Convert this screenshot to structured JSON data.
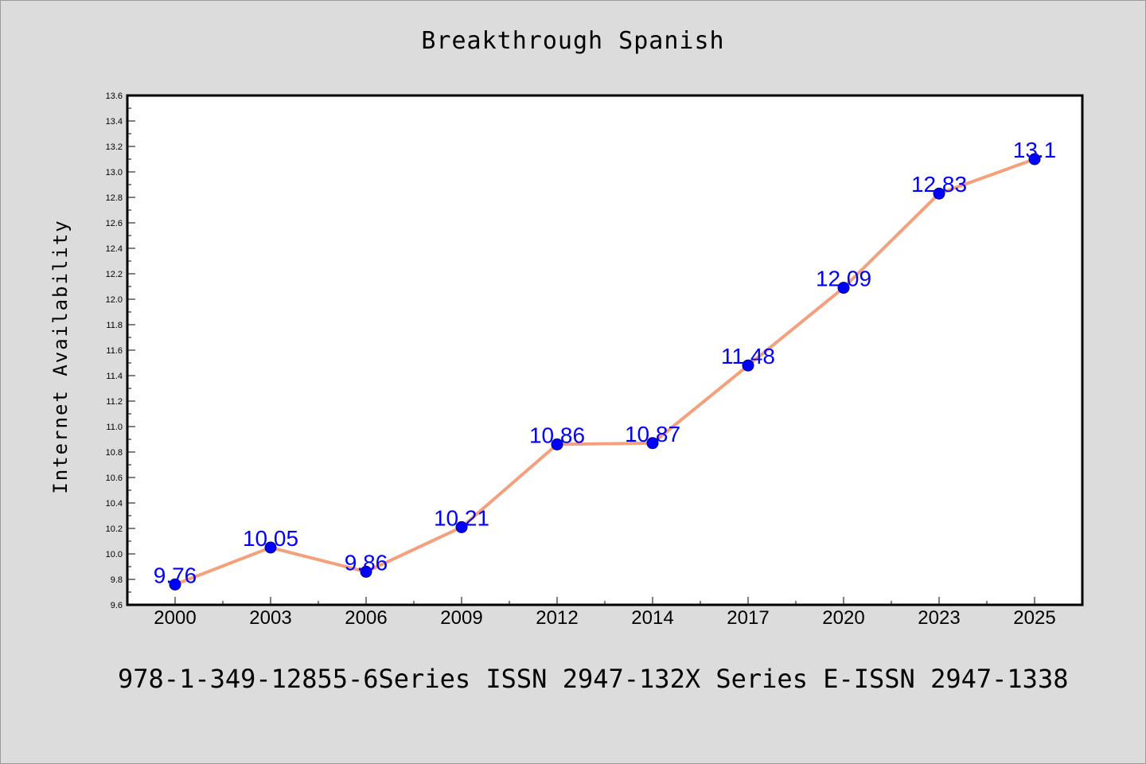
{
  "chart_data": {
    "type": "line",
    "title": "Breakthrough Spanish",
    "xlabel": "",
    "ylabel": "Internet Availability",
    "categories": [
      "2000",
      "2003",
      "2006",
      "2009",
      "2012",
      "2014",
      "2017",
      "2020",
      "2023",
      "2025"
    ],
    "series": [
      {
        "values": [
          9.76,
          10.05,
          9.86,
          10.21,
          10.86,
          10.87,
          11.48,
          12.09,
          12.83,
          13.1
        ],
        "data_labels": [
          "9.76",
          "10.05",
          "9.86",
          "10.21",
          "10.86",
          "10.87",
          "11.48",
          "12.09",
          "12.83",
          "13.1"
        ]
      }
    ],
    "ylim": [
      9.6,
      13.6
    ],
    "yticks": [
      "9.6",
      "9.8",
      "10.0",
      "10.2",
      "10.4",
      "10.6",
      "10.8",
      "11.0",
      "11.2",
      "11.4",
      "11.6",
      "11.8",
      "12.0",
      "12.2",
      "12.4",
      "12.6",
      "12.8",
      "13.0",
      "13.2",
      "13.4",
      "13.6"
    ],
    "grid": false,
    "legend": "none",
    "colors": {
      "line": "#f4a07c",
      "marker_fill": "#0000ff",
      "marker_edge": "#000080",
      "data_label": "#0000ff",
      "plot_background": "#ffffff",
      "page_background": "#dcdcdc"
    }
  },
  "footer_text": "978-1-349-12855-6Series ISSN 2947-132X Series E-ISSN 2947-1338"
}
